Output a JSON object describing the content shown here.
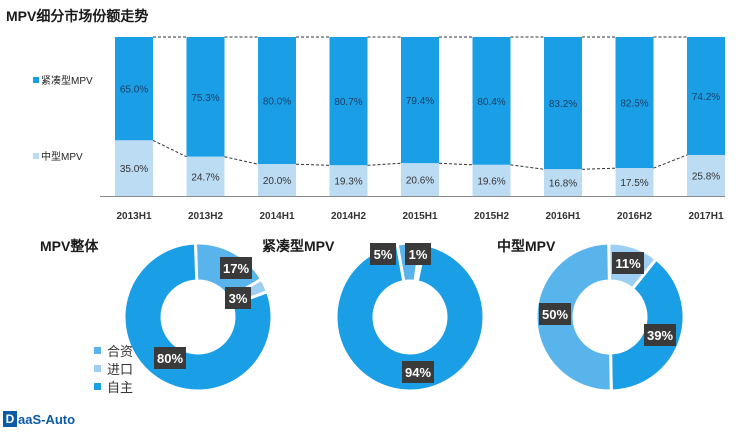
{
  "page": {
    "title": "MPV细分市场份额走势",
    "logo": "DaaS-Auto",
    "logo_mark": "D",
    "logo_text": "aaS-Auto"
  },
  "colors": {
    "compact": "#1a9ee6",
    "mid": "#bcdcf4",
    "donut_dark": "#1a9ee6",
    "donut_mid": "#5ab4ec",
    "donut_light": "#9dcff2",
    "label_bg": "#3a3a3a"
  },
  "chart_data": [
    {
      "type": "bar",
      "stacked": true,
      "percent": true,
      "title": "MPV细分市场份额走势",
      "categories": [
        "2013H1",
        "2013H2",
        "2014H1",
        "2014H2",
        "2015H1",
        "2015H2",
        "2016H1",
        "2016H2",
        "2017H1"
      ],
      "series": [
        {
          "name": "紧凑型MPV",
          "values": [
            65.0,
            75.3,
            80.0,
            80.7,
            79.4,
            80.4,
            83.2,
            82.5,
            74.2
          ],
          "labels": [
            "65.0%",
            "75.3%",
            "80.0%",
            "80.7%",
            "79.4%",
            "80.4%",
            "83.2%",
            "82.5%",
            "74.2%"
          ]
        },
        {
          "name": "中型MPV",
          "values": [
            35.0,
            24.7,
            20.0,
            19.3,
            20.6,
            19.6,
            16.8,
            17.5,
            25.8
          ],
          "labels": [
            "35.0%",
            "24.7%",
            "20.0%",
            "19.3%",
            "20.6%",
            "19.6%",
            "16.8%",
            "17.5%",
            "25.8%"
          ]
        }
      ],
      "ylim": [
        0,
        100
      ],
      "legend_position": "left"
    },
    {
      "type": "pie",
      "donut": true,
      "title": "MPV整体",
      "slices": [
        {
          "name": "合资",
          "value": 17,
          "label": "17%"
        },
        {
          "name": "进口",
          "value": 3,
          "label": "3%"
        },
        {
          "name": "自主",
          "value": 80,
          "label": "80%"
        }
      ]
    },
    {
      "type": "pie",
      "donut": true,
      "title": "紧凑型MPV",
      "slices": [
        {
          "name": "合资",
          "value": 5,
          "label": "5%"
        },
        {
          "name": "进口",
          "value": 1,
          "label": "1%"
        },
        {
          "name": "自主",
          "value": 94,
          "label": "94%"
        }
      ]
    },
    {
      "type": "pie",
      "donut": true,
      "title": "中型MPV",
      "slices": [
        {
          "name": "进口",
          "value": 11,
          "label": "11%"
        },
        {
          "name": "自主",
          "value": 39,
          "label": "39%"
        },
        {
          "name": "合资",
          "value": 50,
          "label": "50%"
        }
      ]
    }
  ],
  "legend": {
    "items": [
      "合资",
      "进口",
      "自主"
    ]
  }
}
